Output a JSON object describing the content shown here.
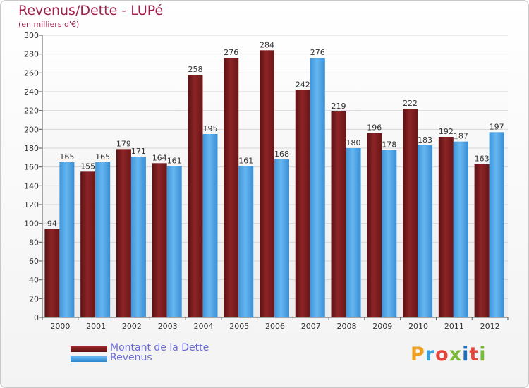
{
  "title": "Revenus/Dette - LUPé",
  "subtitle": "(en milliers d'€)",
  "legend": {
    "debt_label": "Montant de la Dette",
    "revenue_label": "Revenus"
  },
  "logo_text": "Proxiti",
  "colors": {
    "debt": "#7a1c1e",
    "revenue": "#4da6e8",
    "title": "#a0204a",
    "legend_text": "#6b6bd8"
  },
  "chart_data": {
    "type": "bar",
    "categories": [
      "2000",
      "2001",
      "2002",
      "2003",
      "2004",
      "2005",
      "2006",
      "2007",
      "2008",
      "2009",
      "2010",
      "2011",
      "2012"
    ],
    "series": [
      {
        "name": "Montant de la Dette",
        "values": [
          94,
          155,
          179,
          164,
          258,
          276,
          284,
          242,
          219,
          196,
          222,
          192,
          163
        ]
      },
      {
        "name": "Revenus",
        "values": [
          165,
          165,
          171,
          161,
          195,
          161,
          168,
          276,
          180,
          178,
          183,
          187,
          197
        ]
      }
    ],
    "ylim": [
      0,
      300
    ],
    "ytick_step": 20,
    "grid": true,
    "legend_position": "bottom-left"
  }
}
